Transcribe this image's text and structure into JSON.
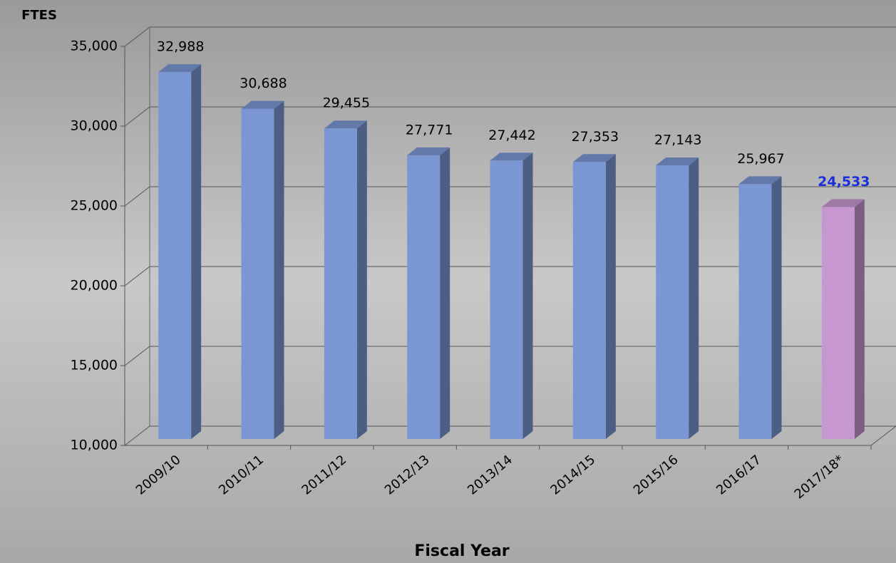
{
  "chart_data": {
    "type": "bar3d",
    "y_axis_label": "FTES",
    "x_axis_label": "Fiscal Year",
    "categories": [
      "2009/10",
      "2010/11",
      "2011/12",
      "2012/13",
      "2013/14",
      "2014/15",
      "2015/16",
      "2016/17",
      "2017/18*"
    ],
    "values": [
      32988,
      30688,
      29455,
      27771,
      27442,
      27353,
      27143,
      25967,
      24533
    ],
    "value_labels": [
      "32,988",
      "30,688",
      "29,455",
      "27,771",
      "27,442",
      "27,353",
      "27,143",
      "25,967",
      "24,533"
    ],
    "colors": [
      "#7b97d3",
      "#7b97d3",
      "#7b97d3",
      "#7b97d3",
      "#7b97d3",
      "#7b97d3",
      "#7b97d3",
      "#7b97d3",
      "#c797d0"
    ],
    "value_label_colors": [
      "#000000",
      "#000000",
      "#000000",
      "#000000",
      "#000000",
      "#000000",
      "#000000",
      "#000000",
      "#1a2fd8"
    ],
    "value_label_weights": [
      "normal",
      "normal",
      "normal",
      "normal",
      "normal",
      "normal",
      "normal",
      "normal",
      "bold"
    ],
    "ylim": [
      10000,
      35000
    ],
    "yticks": [
      {
        "value": 10000,
        "label": "10,000"
      },
      {
        "value": 15000,
        "label": "15,000"
      },
      {
        "value": 20000,
        "label": "20,000"
      },
      {
        "value": 25000,
        "label": "25,000"
      },
      {
        "value": 30000,
        "label": "30,000"
      },
      {
        "value": 35000,
        "label": "35,000"
      }
    ],
    "grid": true
  }
}
